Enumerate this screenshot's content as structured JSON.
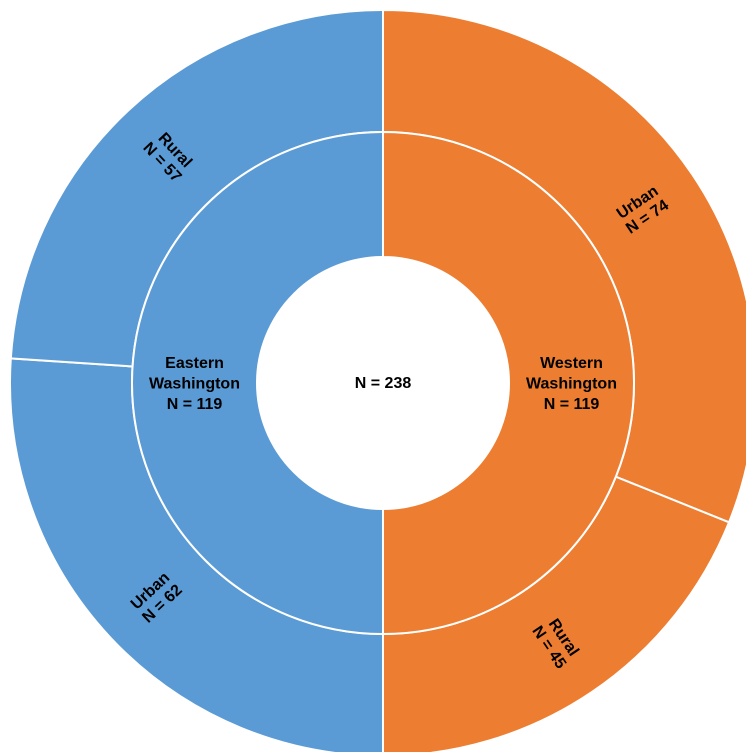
{
  "chart_data": {
    "type": "sunburst",
    "total_label": "N = 238",
    "total": 238,
    "inner_ring": [
      {
        "name": "Western",
        "name2": "Washington",
        "count_label": "N = 119",
        "value": 119,
        "color": "#ED7D31"
      },
      {
        "name": "Eastern",
        "name2": "Washington",
        "count_label": "N = 119",
        "value": 119,
        "color": "#5B9BD5"
      }
    ],
    "outer_ring": [
      {
        "parent": "Western Washington",
        "name": "Urban",
        "count_label": "N = 74",
        "value": 74,
        "color": "#ED7D31"
      },
      {
        "parent": "Western Washington",
        "name": "Rural",
        "count_label": "N = 45",
        "value": 45,
        "color": "#ED7D31"
      },
      {
        "parent": "Eastern Washington",
        "name": "Urban",
        "count_label": "N = 62",
        "value": 62,
        "color": "#5B9BD5"
      },
      {
        "parent": "Eastern Washington",
        "name": "Rural",
        "count_label": "N = 57",
        "value": 57,
        "color": "#5B9BD5"
      }
    ]
  }
}
